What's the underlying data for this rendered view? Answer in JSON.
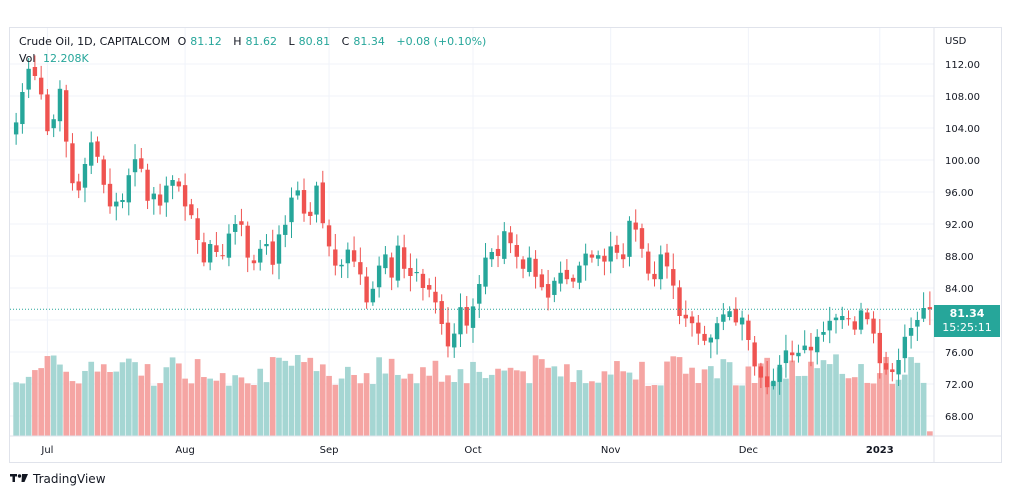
{
  "legend": {
    "title": "Crude Oil, 1D, CAPITALCOM",
    "open_label": "O",
    "open": "81.12",
    "high_label": "H",
    "high": "81.62",
    "low_label": "L",
    "low": "80.81",
    "close_label": "C",
    "close": "81.34",
    "change": "+0.08 (+0.10%)",
    "vol_label": "Vol",
    "vol": "12.208K"
  },
  "price_tag": {
    "price": "81.34",
    "countdown": "15:25:11"
  },
  "footer": {
    "brand": "TradingView",
    "logo_icon": "tradingview-logo-icon"
  },
  "colors": {
    "up": "#26a69a",
    "down": "#ef5350",
    "up_vol": "#a5d6d3",
    "down_vol": "#f5a5a3",
    "grid": "#f0f3fa"
  },
  "chart_data": {
    "type": "candlestick",
    "currency": "USD",
    "y_ticks": [
      "68.00",
      "72.00",
      "76.00",
      "80.00",
      "84.00",
      "88.00",
      "92.00",
      "96.00",
      "100.00",
      "104.00",
      "108.00",
      "112.00"
    ],
    "ylim": [
      65.5,
      116.5
    ],
    "x_ticks": [
      "Jul",
      "Aug",
      "Sep",
      "Oct",
      "Nov",
      "Dec",
      "2023"
    ],
    "x_tick_index": [
      5,
      27,
      50,
      73,
      95,
      117,
      138
    ],
    "last_price": 81.34,
    "closes": [
      104.7,
      108.5,
      111.4,
      110.5,
      108.2,
      103.6,
      105.1,
      108.9,
      102.3,
      97.1,
      96.2,
      99.5,
      102.2,
      100.4,
      96.9,
      94.2,
      94.8,
      95.0,
      98.1,
      100.1,
      98.9,
      94.9,
      95.8,
      94.3,
      96.8,
      97.5,
      96.7,
      94.2,
      93.1,
      90.0,
      87.2,
      89.5,
      88.5,
      88.1,
      90.8,
      92.0,
      91.9,
      87.8,
      87.1,
      88.9,
      89.5,
      86.9,
      90.7,
      91.9,
      95.3,
      96.2,
      93.3,
      93.0,
      96.8,
      92.1,
      89.2,
      86.8,
      86.9,
      88.8,
      87.3,
      85.7,
      82.2,
      83.9,
      86.8,
      88.2,
      85.3,
      89.3,
      86.4,
      85.5,
      86.0,
      84.0,
      83.8,
      82.2,
      79.5,
      76.7,
      78.3,
      81.6,
      79.3,
      81.7,
      84.5,
      87.8,
      88.5,
      88.0,
      91.1,
      89.6,
      87.9,
      86.4,
      87.8,
      85.4,
      84.1,
      82.8,
      84.9,
      85.9,
      85.1,
      84.8,
      86.8,
      88.3,
      87.8,
      88.1,
      87.3,
      89.2,
      88.4,
      87.6,
      92.4,
      91.3,
      88.9,
      85.8,
      85.1,
      88.2,
      86.7,
      84.3,
      80.5,
      80.2,
      79.6,
      78.3,
      77.4,
      77.8,
      79.6,
      80.7,
      81.1,
      79.7,
      80.3,
      77.5,
      74.2,
      72.8,
      71.6,
      72.4,
      74.4,
      76.2,
      75.6,
      75.9,
      76.8,
      76.2,
      77.9,
      78.5,
      79.9,
      80.3,
      80.5,
      80.1,
      78.8,
      81.2,
      80.1,
      78.3,
      74.6,
      73.8,
      73.5,
      75.0,
      77.9,
      79.0,
      80.0,
      81.5,
      81.34
    ],
    "volume_note": "volume bars shown relative to session volume"
  }
}
